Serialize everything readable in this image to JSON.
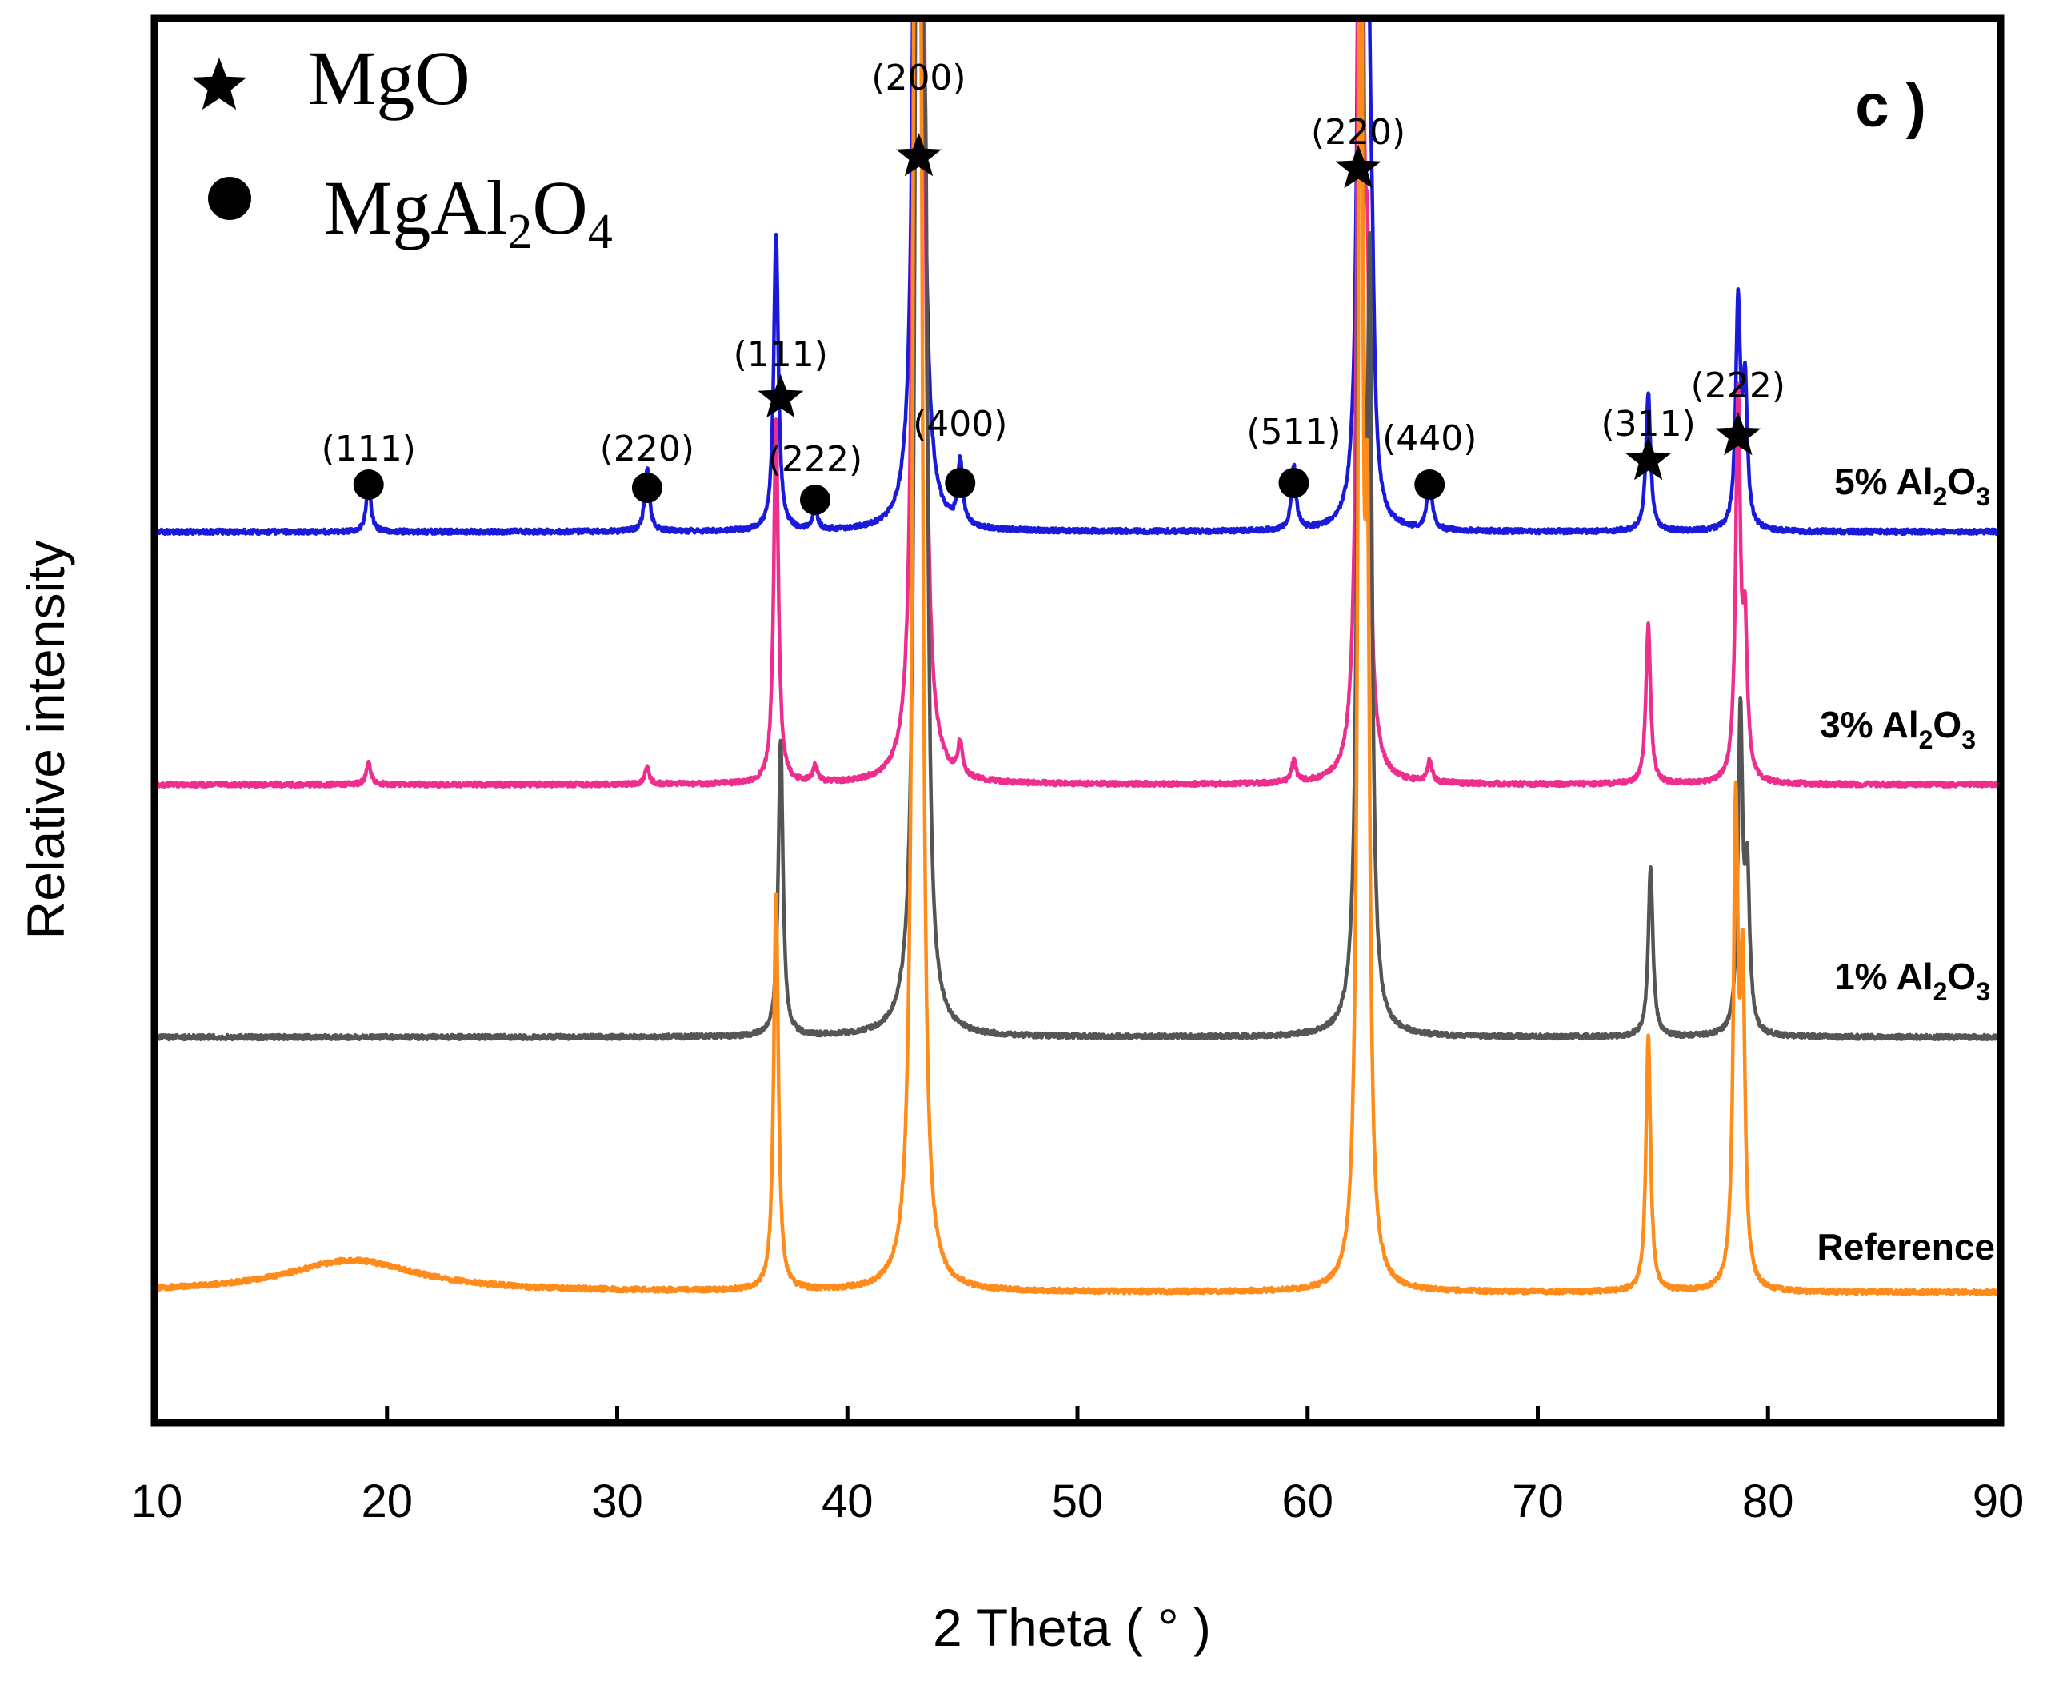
{
  "chart_data": {
    "type": "line",
    "title": "",
    "panel_label": "c )",
    "xlabel": "2 Theta ( ° )",
    "ylabel": "Relative intensity",
    "xlim": [
      10,
      90
    ],
    "xticks": [
      10,
      20,
      30,
      40,
      50,
      60,
      70,
      80,
      90
    ],
    "yticks": [],
    "grid": false,
    "legend": {
      "placement": "top-left",
      "entries": [
        {
          "marker": "star",
          "text": "MgO"
        },
        {
          "marker": "circle",
          "text": "MgAl",
          "sub": "2",
          "text2": "O",
          "sub2": "4"
        }
      ]
    },
    "series": [
      {
        "name": "5% Al2O3",
        "label": {
          "prefix": "5% Al",
          "sub1": "2",
          "mid": "O",
          "sub2": "3"
        },
        "color": "#1a1adb",
        "baseline_offset": 3,
        "peaks": [
          {
            "x": 19.2,
            "h": 0.045
          },
          {
            "x": 31.3,
            "h": 0.06
          },
          {
            "x": 36.9,
            "h": 0.28
          },
          {
            "x": 38.6,
            "h": 0.02
          },
          {
            "x": 42.9,
            "h": 0.12
          },
          {
            "x": 43.1,
            "h": 2.3
          },
          {
            "x": 44.9,
            "h": 0.06
          },
          {
            "x": 59.4,
            "h": 0.06
          },
          {
            "x": 62.3,
            "h": 0.98
          },
          {
            "x": 62.6,
            "h": 0.55
          },
          {
            "x": 62.8,
            "h": 0.13
          },
          {
            "x": 65.3,
            "h": 0.05
          },
          {
            "x": 74.8,
            "h": 0.13
          },
          {
            "x": 78.7,
            "h": 0.21
          },
          {
            "x": 79.0,
            "h": 0.13
          }
        ]
      },
      {
        "name": "3% Al2O3",
        "label": {
          "prefix": "3% Al",
          "sub1": "2",
          "mid": "O",
          "sub2": "3"
        },
        "color": "#ee2e8e",
        "baseline_offset": 2,
        "peaks": [
          {
            "x": 19.2,
            "h": 0.02
          },
          {
            "x": 31.3,
            "h": 0.015
          },
          {
            "x": 36.9,
            "h": 0.34
          },
          {
            "x": 38.6,
            "h": 0.015
          },
          {
            "x": 42.8,
            "h": 0.12
          },
          {
            "x": 43.1,
            "h": 2.3
          },
          {
            "x": 43.3,
            "h": 0.35
          },
          {
            "x": 44.9,
            "h": 0.03
          },
          {
            "x": 59.4,
            "h": 0.02
          },
          {
            "x": 62.3,
            "h": 1.4
          },
          {
            "x": 62.6,
            "h": 0.35
          },
          {
            "x": 65.3,
            "h": 0.02
          },
          {
            "x": 74.8,
            "h": 0.15
          },
          {
            "x": 78.7,
            "h": 0.36
          },
          {
            "x": 79.0,
            "h": 0.13
          }
        ]
      },
      {
        "name": "1% Al2O3",
        "label": {
          "prefix": "1% Al",
          "sub1": "2",
          "mid": "O",
          "sub2": "3"
        },
        "color": "#555555",
        "baseline_offset": 1,
        "peaks": [
          {
            "x": 37.1,
            "h": 0.28
          },
          {
            "x": 43.1,
            "h": 2.3
          },
          {
            "x": 43.4,
            "h": 0.55
          },
          {
            "x": 62.3,
            "h": 1.3
          },
          {
            "x": 62.7,
            "h": 0.65
          },
          {
            "x": 74.9,
            "h": 0.16
          },
          {
            "x": 78.8,
            "h": 0.3
          },
          {
            "x": 79.1,
            "h": 0.14
          }
        ]
      },
      {
        "name": "Reference",
        "label": {
          "prefix": "Reference"
        },
        "color": "#ff8c1a",
        "baseline_offset": 0,
        "peaks": [
          {
            "x": 18.5,
            "h": 0.03,
            "w": 3.5
          },
          {
            "x": 36.9,
            "h": 0.37
          },
          {
            "x": 43.0,
            "h": 2.3
          },
          {
            "x": 43.2,
            "h": 0.6
          },
          {
            "x": 62.3,
            "h": 1.4
          },
          {
            "x": 62.6,
            "h": 0.6
          },
          {
            "x": 74.8,
            "h": 0.24
          },
          {
            "x": 78.6,
            "h": 0.44
          },
          {
            "x": 78.9,
            "h": 0.28
          }
        ]
      }
    ],
    "annotations": [
      {
        "text": "(111)",
        "marker": "circle",
        "x": 19.2
      },
      {
        "text": "(220)",
        "marker": "circle",
        "x": 31.3
      },
      {
        "text": "(111)",
        "marker": "star",
        "x": 37.1
      },
      {
        "text": "(222)",
        "marker": "circle",
        "x": 38.6
      },
      {
        "text": "(200)",
        "marker": "star",
        "x": 43.1
      },
      {
        "text": "(400)",
        "marker": "circle",
        "x": 44.9
      },
      {
        "text": "(511)",
        "marker": "circle",
        "x": 59.4
      },
      {
        "text": "(220)",
        "marker": "star",
        "x": 62.2
      },
      {
        "text": "(440)",
        "marker": "circle",
        "x": 65.3
      },
      {
        "text": "(311)",
        "marker": "star",
        "x": 74.8
      },
      {
        "text": "(222)",
        "marker": "star",
        "x": 78.7
      }
    ]
  }
}
